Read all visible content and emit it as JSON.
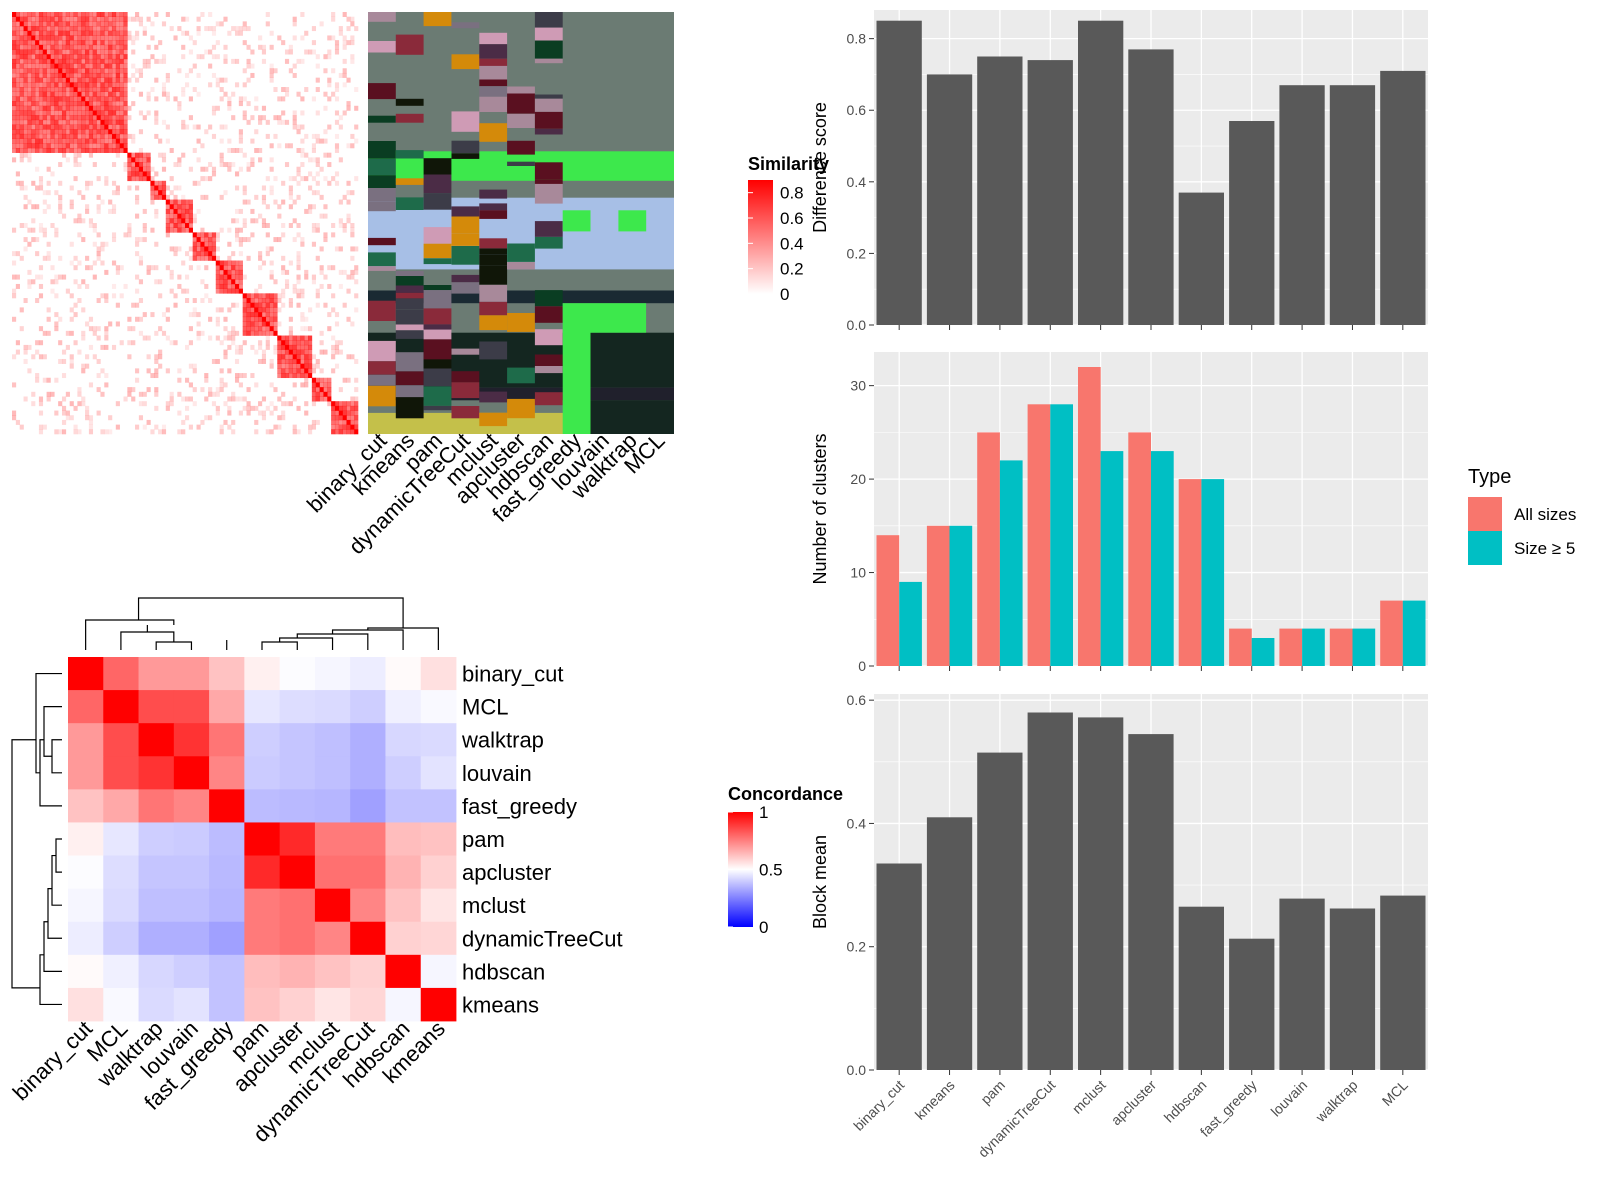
{
  "methods_bar": [
    "binary_cut",
    "kmeans",
    "pam",
    "dynamicTreeCut",
    "mclust",
    "apcluster",
    "hdbscan",
    "fast_greedy",
    "louvain",
    "walktrap",
    "MCL"
  ],
  "methods_heat": [
    "binary_cut",
    "kmeans",
    "pam",
    "dynamicTreeCut",
    "mclust",
    "apcluster",
    "hdbscan",
    "fast_greedy",
    "louvain",
    "walktrap",
    "MCL"
  ],
  "similarity_legend": {
    "title": "Similarity",
    "ticks": [
      "0.8",
      "0.6",
      "0.4",
      "0.2",
      "0"
    ],
    "tick_values": [
      0.8,
      0.6,
      0.4,
      0.2,
      0
    ]
  },
  "concordance_legend": {
    "title": "Concordance",
    "ticks": [
      "1",
      "0.5",
      "0"
    ],
    "tick_values": [
      1,
      0.5,
      0
    ]
  },
  "type_legend": {
    "title": "Type",
    "items": [
      {
        "label": "All sizes",
        "color": "#F8766D"
      },
      {
        "label": "Size ≥ 5",
        "color": "#00BFC4"
      }
    ]
  },
  "colors": {
    "bar_fill": "#595959",
    "panel_bg": "#ebebeb",
    "grid": "#ffffff",
    "red": "#ff0000",
    "blue": "#0000ff"
  },
  "chart_data": [
    {
      "type": "bar",
      "categories": [
        "binary_cut",
        "kmeans",
        "pam",
        "dynamicTreeCut",
        "mclust",
        "apcluster",
        "hdbscan",
        "fast_greedy",
        "louvain",
        "walktrap",
        "MCL"
      ],
      "values": [
        0.85,
        0.7,
        0.75,
        0.74,
        0.85,
        0.77,
        0.37,
        0.57,
        0.67,
        0.67,
        0.71
      ],
      "ylabel": "Difference score",
      "ylim": [
        0,
        0.88
      ],
      "yticks": [
        0,
        0.2,
        0.4,
        0.6,
        0.8
      ],
      "ytick_labels": [
        "0.0",
        "0.2",
        "0.4",
        "0.6",
        "0.8"
      ]
    },
    {
      "type": "bar",
      "categories": [
        "binary_cut",
        "kmeans",
        "pam",
        "dynamicTreeCut",
        "mclust",
        "apcluster",
        "hdbscan",
        "fast_greedy",
        "louvain",
        "walktrap",
        "MCL"
      ],
      "series": [
        {
          "name": "All sizes",
          "values": [
            14,
            15,
            25,
            28,
            32,
            25,
            20,
            4,
            4,
            4,
            7
          ]
        },
        {
          "name": "Size ≥ 5",
          "values": [
            9,
            15,
            22,
            28,
            23,
            23,
            20,
            3,
            4,
            4,
            7
          ]
        }
      ],
      "ylabel": "Number of clusters",
      "ylim": [
        0,
        33.6
      ],
      "yticks": [
        0,
        10,
        20,
        30
      ],
      "ytick_labels": [
        "0",
        "10",
        "20",
        "30"
      ],
      "legend": "right"
    },
    {
      "type": "bar",
      "categories": [
        "binary_cut",
        "kmeans",
        "pam",
        "dynamicTreeCut",
        "mclust",
        "apcluster",
        "hdbscan",
        "fast_greedy",
        "louvain",
        "walktrap",
        "MCL"
      ],
      "values": [
        0.335,
        0.41,
        0.515,
        0.58,
        0.572,
        0.545,
        0.265,
        0.213,
        0.278,
        0.262,
        0.283
      ],
      "ylabel": "Block mean",
      "ylim": [
        0,
        0.61
      ],
      "yticks": [
        0,
        0.2,
        0.4,
        0.6
      ],
      "ytick_labels": [
        "0.0",
        "0.2",
        "0.4",
        "0.6"
      ]
    },
    {
      "type": "heatmap",
      "rows": [
        "binary_cut",
        "MCL",
        "walktrap",
        "louvain",
        "fast_greedy",
        "pam",
        "apcluster",
        "mclust",
        "dynamicTreeCut",
        "hdbscan",
        "kmeans"
      ],
      "cols": [
        "binary_cut",
        "MCL",
        "walktrap",
        "louvain",
        "fast_greedy",
        "pam",
        "apcluster",
        "mclust",
        "dynamicTreeCut",
        "hdbscan",
        "kmeans"
      ],
      "values": [
        [
          1.0,
          0.8,
          0.7,
          0.7,
          0.62,
          0.53,
          0.49,
          0.47,
          0.44,
          0.51,
          0.56
        ],
        [
          0.8,
          1.0,
          0.85,
          0.85,
          0.67,
          0.42,
          0.39,
          0.38,
          0.34,
          0.45,
          0.48
        ],
        [
          0.7,
          0.85,
          1.0,
          0.9,
          0.77,
          0.34,
          0.31,
          0.29,
          0.24,
          0.37,
          0.38
        ],
        [
          0.7,
          0.85,
          0.9,
          1.0,
          0.74,
          0.33,
          0.31,
          0.29,
          0.24,
          0.34,
          0.41
        ],
        [
          0.62,
          0.67,
          0.77,
          0.74,
          1.0,
          0.28,
          0.27,
          0.26,
          0.19,
          0.3,
          0.3
        ],
        [
          0.53,
          0.42,
          0.34,
          0.33,
          0.28,
          1.0,
          0.92,
          0.76,
          0.76,
          0.63,
          0.62
        ],
        [
          0.49,
          0.39,
          0.31,
          0.31,
          0.27,
          0.92,
          1.0,
          0.78,
          0.78,
          0.65,
          0.59
        ],
        [
          0.47,
          0.38,
          0.29,
          0.29,
          0.26,
          0.76,
          0.78,
          1.0,
          0.74,
          0.62,
          0.55
        ],
        [
          0.44,
          0.34,
          0.24,
          0.24,
          0.19,
          0.76,
          0.78,
          0.74,
          1.0,
          0.59,
          0.58
        ],
        [
          0.51,
          0.45,
          0.37,
          0.34,
          0.3,
          0.63,
          0.65,
          0.62,
          0.59,
          1.0,
          0.47
        ],
        [
          0.56,
          0.48,
          0.38,
          0.41,
          0.3,
          0.62,
          0.59,
          0.55,
          0.58,
          0.47,
          1.0
        ]
      ]
    }
  ]
}
